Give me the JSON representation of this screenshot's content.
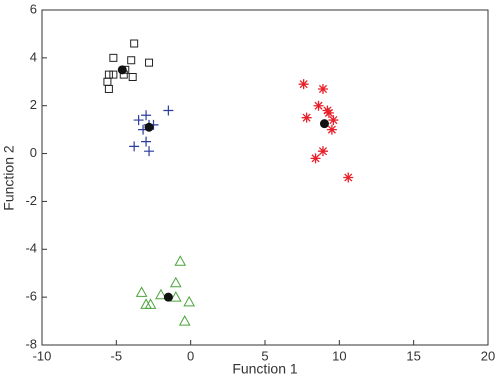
{
  "chart_data": {
    "type": "scatter",
    "xlabel": "Function 1",
    "ylabel": "Function 2",
    "xlim": [
      -10,
      20
    ],
    "ylim": [
      -8,
      6
    ],
    "xticks": [
      -10,
      -5,
      0,
      5,
      10,
      15,
      20
    ],
    "yticks": [
      -8,
      -6,
      -4,
      -2,
      0,
      2,
      4,
      6
    ],
    "series": [
      {
        "marker": "square",
        "color": "#222222",
        "x": [
          -3.8,
          -5.2,
          -4.0,
          -2.8,
          -4.4,
          -5.5,
          -5.2,
          -4.5,
          -3.9,
          -5.6,
          -5.5
        ],
        "y": [
          4.6,
          4.0,
          3.9,
          3.8,
          3.5,
          3.3,
          3.3,
          3.3,
          3.2,
          3.0,
          2.7
        ]
      },
      {
        "marker": "plus",
        "color": "#2a3c9a",
        "x": [
          -1.5,
          -3.5,
          -3.0,
          -2.5,
          -3.2,
          -3.0,
          -3.8,
          -2.8,
          -2.8
        ],
        "y": [
          1.8,
          1.4,
          1.6,
          1.2,
          1.0,
          0.5,
          0.3,
          0.1,
          1.2
        ]
      },
      {
        "marker": "asterisk",
        "color": "#e8202a",
        "x": [
          7.6,
          8.9,
          8.6,
          9.2,
          7.8,
          9.6,
          9.5,
          8.9,
          8.4,
          10.6,
          9.3
        ],
        "y": [
          2.9,
          2.7,
          2.0,
          1.8,
          1.5,
          1.4,
          1.0,
          0.1,
          -0.2,
          -1.0,
          1.7
        ]
      },
      {
        "marker": "triangle",
        "color": "#4aa53a",
        "x": [
          -0.7,
          -1.0,
          -3.3,
          -2.0,
          -1.0,
          -3.0,
          -2.7,
          -0.1,
          -0.4
        ],
        "y": [
          -4.5,
          -5.4,
          -5.8,
          -5.9,
          -6.0,
          -6.3,
          -6.3,
          -6.2,
          -7.0
        ]
      },
      {
        "marker": "circle",
        "color": "#111111",
        "x": [
          -4.6,
          -2.8,
          9.0,
          -1.5
        ],
        "y": [
          3.5,
          1.1,
          1.25,
          -6.0
        ]
      }
    ]
  }
}
